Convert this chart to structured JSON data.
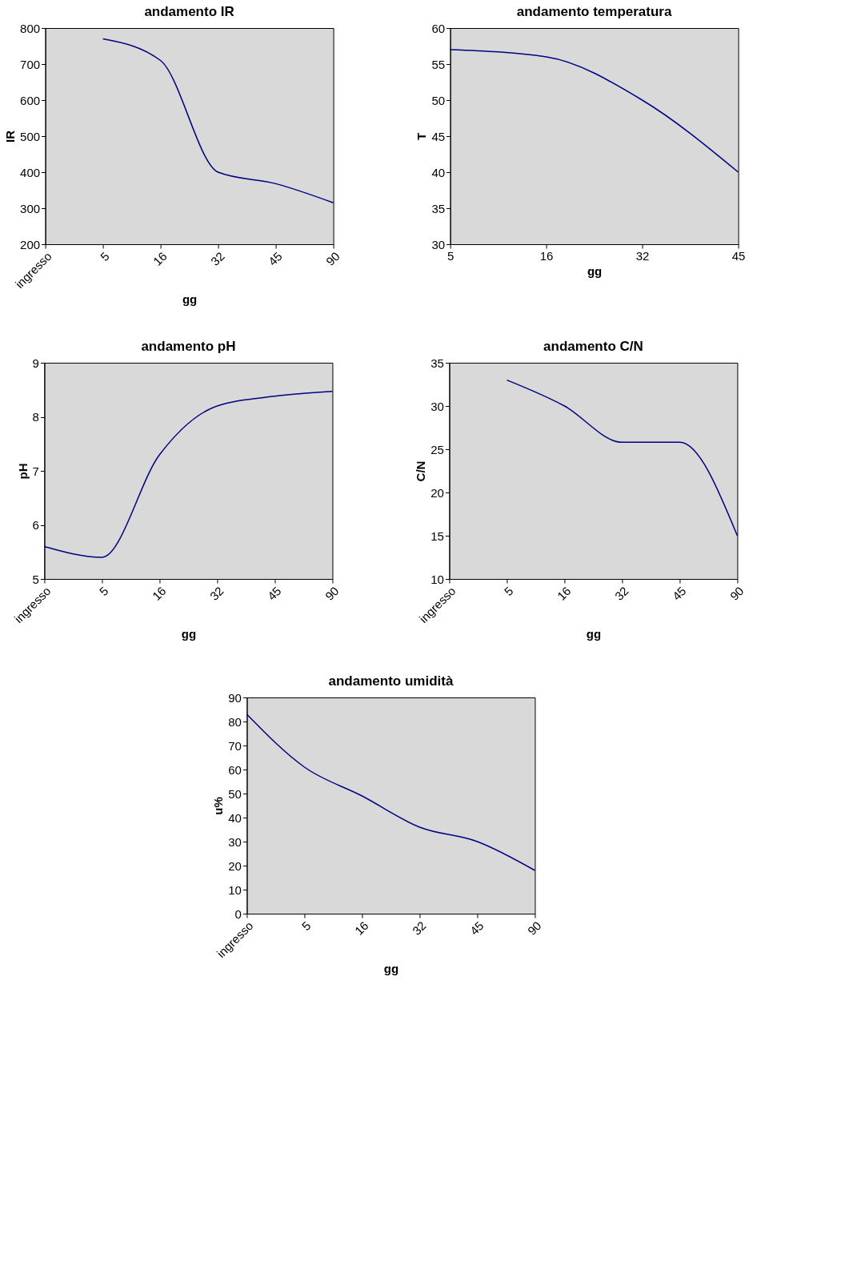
{
  "chart_data": [
    {
      "type": "line",
      "title": "andamento IR",
      "xlabel": "gg",
      "ylabel": "IR",
      "categories": [
        "ingresso",
        "5",
        "16",
        "32",
        "45",
        "90"
      ],
      "series": [
        {
          "color": "#000080",
          "values": [
            null,
            770,
            710,
            400,
            368,
            315
          ]
        }
      ],
      "ylim": [
        200,
        800
      ],
      "yticks": [
        200,
        300,
        400,
        500,
        600,
        700,
        800
      ],
      "grid": false,
      "marker": "none",
      "line_style": "solid"
    },
    {
      "type": "line",
      "title": "andamento temperatura",
      "xlabel": "gg",
      "ylabel": "T",
      "categories": [
        "5",
        "16",
        "32",
        "45"
      ],
      "series": [
        {
          "color": "#000080",
          "values": [
            57,
            56,
            50,
            40
          ]
        }
      ],
      "ylim": [
        30,
        60
      ],
      "yticks": [
        30,
        35,
        40,
        45,
        50,
        55,
        60
      ],
      "grid": false,
      "marker": "none",
      "line_style": "solid"
    },
    {
      "type": "line",
      "title": "andamento pH",
      "xlabel": "gg",
      "ylabel": "pH",
      "categories": [
        "ingresso",
        "5",
        "16",
        "32",
        "45",
        "90"
      ],
      "series": [
        {
          "color": "#000080",
          "values": [
            5.6,
            5.4,
            7.3,
            8.2,
            8.38,
            8.47
          ]
        }
      ],
      "ylim": [
        5,
        9
      ],
      "yticks": [
        5,
        6,
        7,
        8,
        9
      ],
      "grid": false,
      "marker": "none",
      "line_style": "solid"
    },
    {
      "type": "line",
      "title": "andamento C/N",
      "xlabel": "gg",
      "ylabel": "C/N",
      "categories": [
        "ingresso",
        "5",
        "16",
        "32",
        "45",
        "90"
      ],
      "series": [
        {
          "color": "#000080",
          "values": [
            null,
            33,
            30,
            25.8,
            25.8,
            15
          ]
        }
      ],
      "ylim": [
        10,
        35
      ],
      "yticks": [
        10,
        15,
        20,
        25,
        30,
        35
      ],
      "grid": false,
      "marker": "none",
      "line_style": "solid"
    },
    {
      "type": "line",
      "title": "andamento umidità",
      "xlabel": "gg",
      "ylabel": "u%",
      "categories": [
        "ingresso",
        "5",
        "16",
        "32",
        "45",
        "90"
      ],
      "series": [
        {
          "color": "#000080",
          "values": [
            83,
            61,
            49,
            36,
            30,
            18
          ]
        }
      ],
      "ylim": [
        0,
        90
      ],
      "yticks": [
        0,
        10,
        20,
        30,
        40,
        50,
        60,
        70,
        80,
        90
      ],
      "grid": false,
      "marker": "none",
      "line_style": "solid"
    }
  ]
}
